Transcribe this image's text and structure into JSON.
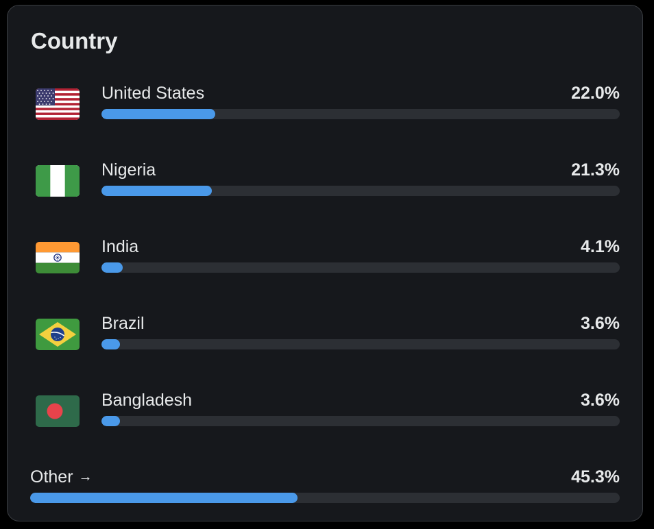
{
  "card": {
    "title": "Country"
  },
  "countries": [
    {
      "name": "United States",
      "percent_label": "22.0%",
      "percent": 22.0,
      "flag_icon": "us-flag-icon"
    },
    {
      "name": "Nigeria",
      "percent_label": "21.3%",
      "percent": 21.3,
      "flag_icon": "nigeria-flag-icon"
    },
    {
      "name": "India",
      "percent_label": "4.1%",
      "percent": 4.1,
      "flag_icon": "india-flag-icon"
    },
    {
      "name": "Brazil",
      "percent_label": "3.6%",
      "percent": 3.6,
      "flag_icon": "brazil-flag-icon"
    },
    {
      "name": "Bangladesh",
      "percent_label": "3.6%",
      "percent": 3.6,
      "flag_icon": "bangladesh-flag-icon"
    }
  ],
  "other": {
    "label": "Other",
    "arrow": "→",
    "percent_label": "45.3%",
    "percent": 45.3
  },
  "colors": {
    "bar_fill": "#4a99e9",
    "bar_track": "#2c2f34",
    "card_bg": "#16181c",
    "text": "#e7e9ea"
  }
}
